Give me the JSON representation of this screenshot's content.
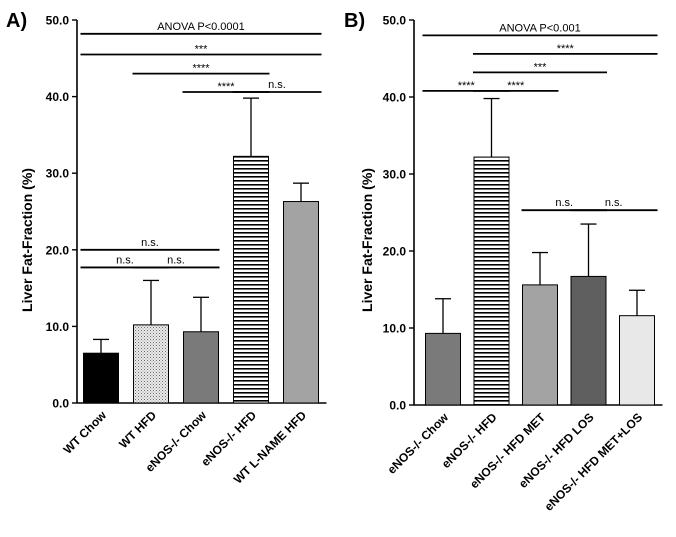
{
  "chart_data": [
    {
      "panel": "A)",
      "type": "bar",
      "ylabel": "Liver Fat-Fraction (%)",
      "ylim": [
        0,
        50
      ],
      "yticks": [
        0,
        10,
        20,
        30,
        40,
        50
      ],
      "ytick_labels": [
        "0.0",
        "10.0",
        "20.0",
        "30.0",
        "40.0",
        "50.0"
      ],
      "categories": [
        "WT Chow",
        "WT HFD",
        "eNOS-/- Chow",
        "eNOS-/- HFD",
        "WT L-NAME HFD"
      ],
      "values": [
        6.5,
        10.2,
        9.3,
        32.2,
        26.3
      ],
      "errors": [
        1.8,
        5.8,
        4.5,
        7.6,
        2.4
      ],
      "bar_fills": [
        "solid-black",
        "dots-light",
        "solid-darkgray",
        "hstripes",
        "solid-gray"
      ],
      "annotations": [
        {
          "text": "ANOVA P<0.0001",
          "from": 0,
          "to": 4,
          "y": 48.2
        },
        {
          "text": "***",
          "from": 0,
          "to": 4,
          "y": 45.5
        },
        {
          "text": "****",
          "from": 1,
          "to": 3,
          "y": 43.0
        },
        {
          "text": "****",
          "from": 2,
          "to": 3,
          "y": 40.6
        },
        {
          "text": "n.s.",
          "from": 3,
          "to": 4,
          "y": 40.6
        },
        {
          "text": "n.s.",
          "from": 0,
          "to": 2,
          "y": 20.0
        },
        {
          "text": "n.s.",
          "from": 0,
          "to": 1,
          "y": 17.7
        },
        {
          "text": "n.s.",
          "from": 1,
          "to": 2,
          "y": 17.7
        }
      ]
    },
    {
      "panel": "B)",
      "type": "bar",
      "ylabel": "Liver Fat-Fraction (%)",
      "ylim": [
        0,
        50
      ],
      "yticks": [
        0,
        10,
        20,
        30,
        40,
        50
      ],
      "ytick_labels": [
        "0.0",
        "10.0",
        "20.0",
        "30.0",
        "40.0",
        "50.0"
      ],
      "categories": [
        "eNOS-/- Chow",
        "eNOS-/- HFD",
        "eNOS-/- HFD MET",
        "eNOS-/- HFD LOS",
        "eNOS-/- HFD MET+LOS"
      ],
      "values": [
        9.3,
        32.2,
        15.6,
        16.7,
        11.6
      ],
      "errors": [
        4.5,
        7.6,
        4.2,
        6.8,
        3.3
      ],
      "bar_fills": [
        "solid-darkgray",
        "hstripes",
        "solid-gray",
        "solid-dimgray",
        "solid-verylight"
      ],
      "annotations": [
        {
          "text": "ANOVA P<0.001",
          "from": 0,
          "to": 4,
          "y": 48.0
        },
        {
          "text": "****",
          "from": 1,
          "to": 4,
          "y": 45.6
        },
        {
          "text": "***",
          "from": 1,
          "to": 3,
          "y": 43.2
        },
        {
          "text": "****",
          "from": 0,
          "to": 1,
          "y": 40.8
        },
        {
          "text": "****",
          "from": 1,
          "to": 2,
          "y": 40.8
        },
        {
          "text": "n.s.",
          "from": 2,
          "to": 3,
          "y": 25.3
        },
        {
          "text": "n.s.",
          "from": 3,
          "to": 4,
          "y": 25.3
        }
      ]
    }
  ],
  "colors": {
    "solid-black": "#000000",
    "solid-darkgray": "#7a7a7a",
    "solid-gray": "#a3a3a3",
    "solid-dimgray": "#5f5f5f",
    "solid-verylight": "#e8e8e8",
    "dots-light": "#ececec",
    "stripe": "#000000",
    "axis": "#000000"
  }
}
